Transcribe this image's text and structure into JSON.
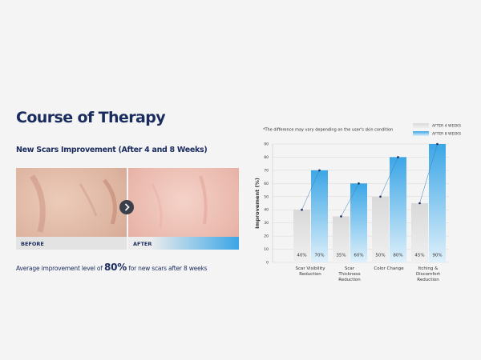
{
  "heading": "Course of Therapy",
  "subheading": "New Scars Improvement (After 4 and 8 Weeks)",
  "photo_labels": [
    "BEFORE",
    "AFTER"
  ],
  "caption": {
    "before": "Average improvement level of",
    "highlight": "80%",
    "after": "for new scars after 8 weeks"
  },
  "chart_data": {
    "type": "bar",
    "note": "*The difference may vary depending on the user's skin condition",
    "y_label": "Improvement (%)",
    "categories": [
      "Scar Visibility Reduction",
      "Scar Thickness Reduction",
      "Color Change",
      "Itching & Discomfort Reduction"
    ],
    "series": [
      {
        "name": "AFTER 4 WEEKS",
        "color": "#d9d9d9",
        "values": [
          40,
          35,
          50,
          45
        ],
        "value_labels": [
          "40%",
          "35%",
          "50%",
          "45%"
        ]
      },
      {
        "name": "AFTER 8 WEEKS",
        "color": "#3ba6e6",
        "values": [
          70,
          60,
          80,
          90
        ],
        "value_labels": [
          "70%",
          "60%",
          "80%",
          "90%"
        ]
      }
    ],
    "ylim": [
      0,
      90
    ],
    "yticks": [
      0,
      10,
      20,
      30,
      40,
      50,
      60,
      70,
      80,
      90
    ],
    "grid": true,
    "legend": "top-right"
  }
}
